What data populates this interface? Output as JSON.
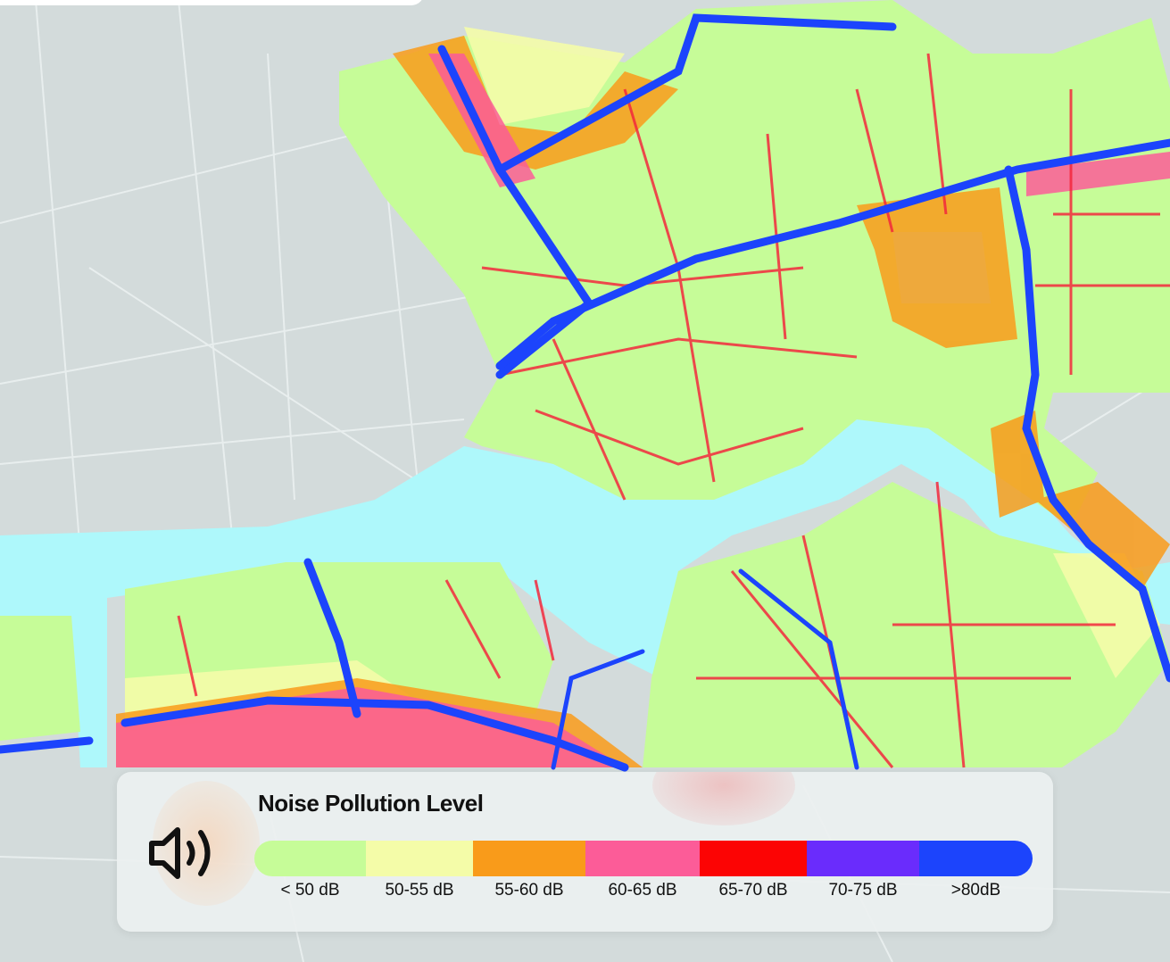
{
  "legend": {
    "title": "Noise Pollution Level",
    "icon": "speaker-volume-icon",
    "levels": [
      {
        "label": "< 50 dB",
        "color": "#c6fc98"
      },
      {
        "label": "50-55 dB",
        "color": "#f4fca8"
      },
      {
        "label": "55-60 dB",
        "color": "#f99b1a"
      },
      {
        "label": "60-65 dB",
        "color": "#fc5c98"
      },
      {
        "label": "65-70 dB",
        "color": "#fc0404"
      },
      {
        "label": "70-75 dB",
        "color": "#6a2cfc"
      },
      {
        "label": ">80dB",
        "color": "#1c44fc"
      }
    ]
  },
  "map": {
    "water_color": "#aef8fb",
    "land_color": "#d3dbdb"
  }
}
